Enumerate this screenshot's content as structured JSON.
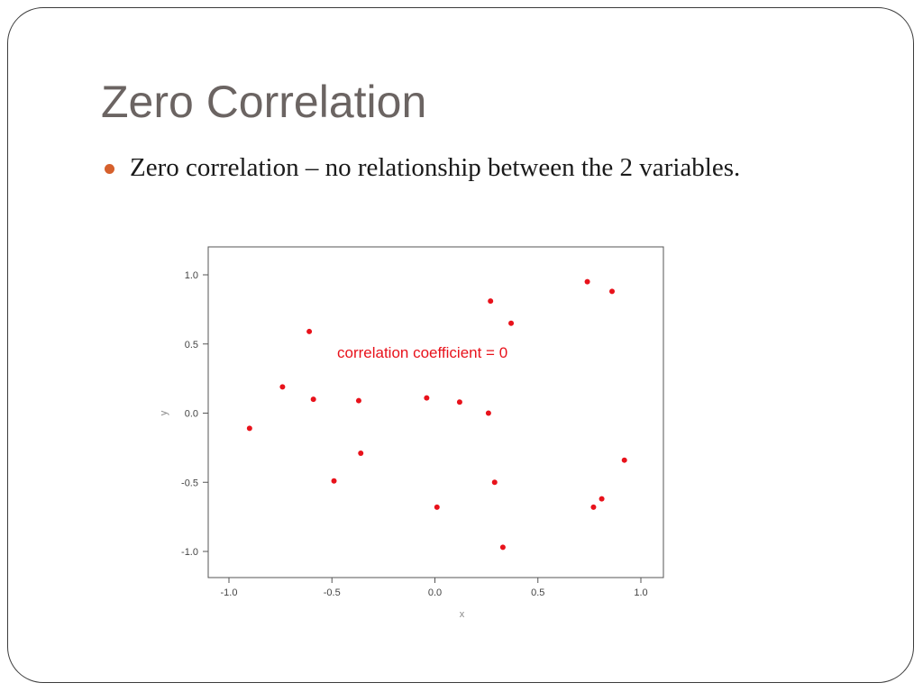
{
  "slide": {
    "title": "Zero Correlation",
    "bullet": "Zero correlation – no relationship between the 2 variables.",
    "bullet_color": "#d6602c",
    "title_color": "#6b6462"
  },
  "chart_data": {
    "type": "scatter",
    "title": "",
    "xlabel": "x",
    "ylabel": "y",
    "xlim": [
      -1.1,
      1.1
    ],
    "ylim": [
      -1.2,
      1.2
    ],
    "xticks": [
      "-1.0",
      "-0.5",
      "0.0",
      "0.5",
      "1.0"
    ],
    "xtick_values": [
      -1.0,
      -0.5,
      0.0,
      0.5,
      1.0
    ],
    "yticks": [
      "1.0",
      "0.5",
      "0.0",
      "-0.5",
      "-1.0"
    ],
    "ytick_values": [
      1.0,
      0.5,
      0.0,
      -0.5,
      -1.0
    ],
    "grid": false,
    "annotation": "correlation coefficient = 0",
    "point_color": "#e8121b",
    "series": [
      {
        "points": [
          {
            "x": -0.9,
            "y": -0.11
          },
          {
            "x": -0.74,
            "y": 0.19
          },
          {
            "x": -0.61,
            "y": 0.59
          },
          {
            "x": -0.59,
            "y": 0.1
          },
          {
            "x": -0.49,
            "y": -0.49
          },
          {
            "x": -0.37,
            "y": 0.09
          },
          {
            "x": -0.36,
            "y": -0.29
          },
          {
            "x": -0.04,
            "y": 0.11
          },
          {
            "x": 0.01,
            "y": -0.68
          },
          {
            "x": 0.12,
            "y": 0.08
          },
          {
            "x": 0.26,
            "y": 0.0
          },
          {
            "x": 0.27,
            "y": 0.81
          },
          {
            "x": 0.29,
            "y": -0.5
          },
          {
            "x": 0.33,
            "y": -0.97
          },
          {
            "x": 0.37,
            "y": 0.65
          },
          {
            "x": 0.74,
            "y": 0.95
          },
          {
            "x": 0.77,
            "y": -0.68
          },
          {
            "x": 0.81,
            "y": -0.62
          },
          {
            "x": 0.86,
            "y": 0.88
          },
          {
            "x": 0.92,
            "y": -0.34
          }
        ]
      }
    ]
  }
}
